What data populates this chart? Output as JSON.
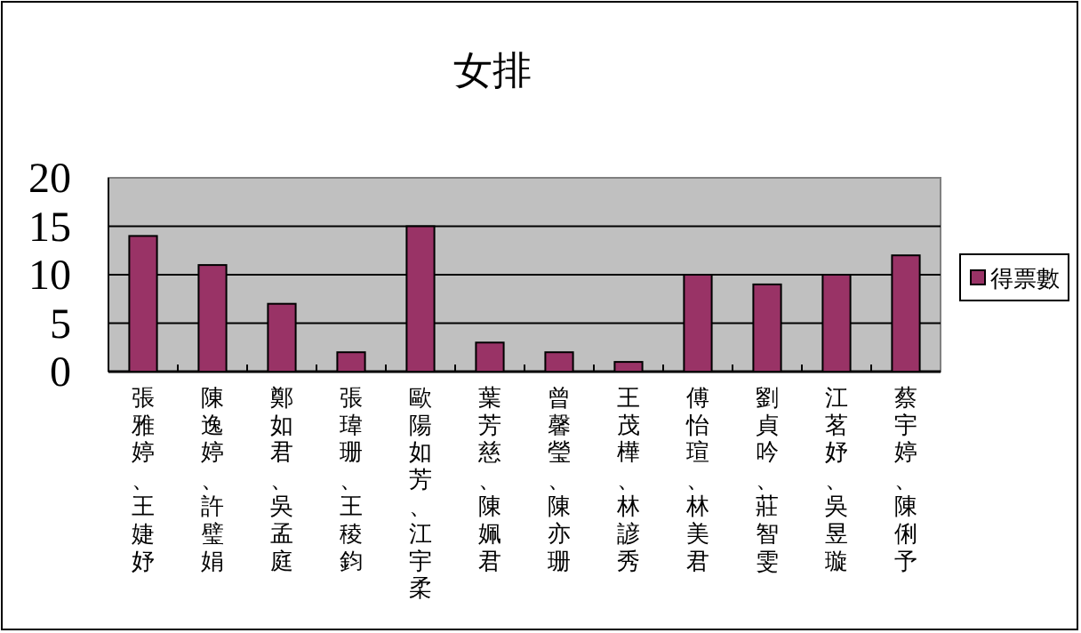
{
  "chart_data": {
    "type": "bar",
    "title": "女排",
    "categories": [
      "張雅婷、王婕妤",
      "陳逸婷、許璧娟",
      "鄭如君、吳孟庭",
      "張瑋珊、王稜鈞",
      "歐陽如芳、江宇柔",
      "葉芳慈、陳姵君",
      "曾馨瑩、陳亦珊",
      "王茂樺、林諺秀",
      "傅怡瑄、林美君",
      "劉貞吟、莊智雯",
      "江茗妤、吳昱璇",
      "蔡宇婷、陳俐予"
    ],
    "series": [
      {
        "name": "得票數",
        "color": "#993366",
        "values": [
          14,
          11,
          7,
          2,
          15,
          3,
          2,
          1,
          10,
          9,
          10,
          12
        ]
      }
    ],
    "ylim": [
      0,
      20
    ],
    "yticks": [
      0,
      5,
      10,
      15,
      20
    ],
    "grid": "y",
    "legend": "right"
  }
}
